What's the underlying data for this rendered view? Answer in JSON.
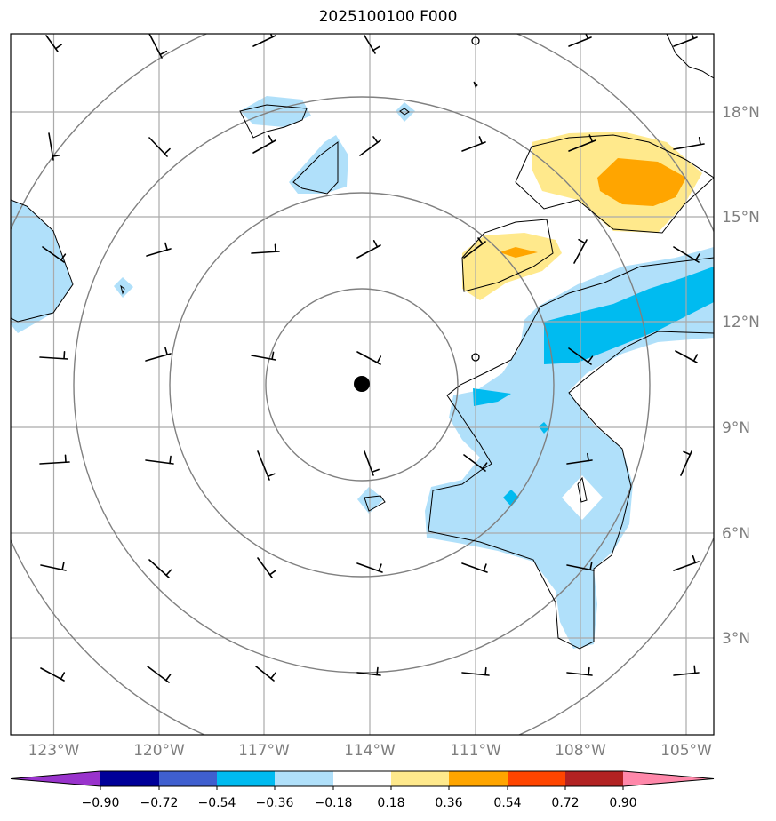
{
  "title": "2025100100 F000",
  "axes": {
    "lon_labels": [
      "123°W",
      "120°W",
      "117°W",
      "114°W",
      "111°W",
      "108°W",
      "105°W"
    ],
    "lat_labels": [
      "18°N",
      "15°N",
      "12°N",
      "9°N",
      "6°N",
      "3°N"
    ]
  },
  "colorbar": {
    "tick_labels": [
      "−0.90",
      "−0.72",
      "−0.54",
      "−0.36",
      "−0.18",
      "0.18",
      "0.36",
      "0.54",
      "0.72",
      "0.90"
    ],
    "colors": [
      "#9933cc",
      "#000099",
      "#3f5fcf",
      "#00bbf0",
      "#b0e0fa",
      "#ffffff",
      "#ffe98c",
      "#ffa500",
      "#ff4500",
      "#b22222",
      "#ff88aa"
    ]
  },
  "colors": {
    "grid": "#aaaaaa",
    "range_rings": "#808080",
    "coastline": "#000000",
    "center_marker": "#000000"
  },
  "map": {
    "projection": "plate-carree",
    "lon_range": [
      -124.2,
      -104.2
    ],
    "lat_range": [
      0.0,
      20.0
    ],
    "center_marker": {
      "lon": -114.2,
      "lat": 10.2
    }
  }
}
